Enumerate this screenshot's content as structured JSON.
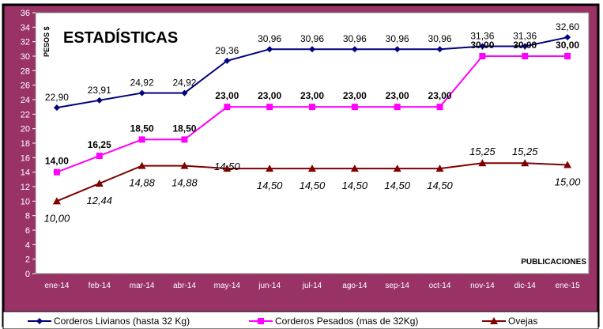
{
  "chart_data": {
    "type": "line",
    "title": "ESTADÍSTICAS",
    "ylabel": "PESOS $",
    "xlabel": "PUBLICACIONES",
    "categories": [
      "ene-14",
      "feb-14",
      "mar-14",
      "abr-14",
      "may-14",
      "jun-14",
      "jul-14",
      "ago-14",
      "sep-14",
      "oct-14",
      "nov-14",
      "dic-14",
      "ene-15"
    ],
    "ylim": [
      0,
      36
    ],
    "ytick_step": 2,
    "grid": false,
    "legend_position": "bottom",
    "series": [
      {
        "name": "Corderos Livianos (hasta 32 Kg)",
        "color": "#000080",
        "marker": "diamond",
        "values": [
          22.9,
          23.91,
          24.92,
          24.92,
          29.36,
          30.96,
          30.96,
          30.96,
          30.96,
          30.96,
          31.36,
          31.36,
          32.6
        ],
        "labels": [
          "22,90",
          "23,91",
          "24,92",
          "24,92",
          "29,36",
          "30,96",
          "30,96",
          "30,96",
          "30,96",
          "30,96",
          "31,36",
          "31,36",
          "32,60"
        ]
      },
      {
        "name": "Corderos Pesados (mas de 32Kg)",
        "color": "#ff00ff",
        "marker": "square",
        "values": [
          14.0,
          16.25,
          18.5,
          18.5,
          23.0,
          23.0,
          23.0,
          23.0,
          23.0,
          23.0,
          30.0,
          30.0,
          30.0
        ],
        "labels": [
          "14,00",
          "16,25",
          "18,50",
          "18,50",
          "23,00",
          "23,00",
          "23,00",
          "23,00",
          "23,00",
          "23,00",
          "30,00",
          "30,00",
          "30,00"
        ]
      },
      {
        "name": "Ovejas",
        "color": "#800000",
        "marker": "triangle",
        "values": [
          10.0,
          12.44,
          14.88,
          14.88,
          14.5,
          14.5,
          14.5,
          14.5,
          14.5,
          14.5,
          15.25,
          15.25,
          15.0
        ],
        "labels": [
          "10,00",
          "12,44",
          "14,88",
          "14,88",
          "14,50",
          "14,50",
          "14,50",
          "14,50",
          "14,50",
          "14,50",
          "15,25",
          "15,25",
          "15,00"
        ]
      }
    ]
  },
  "colors": {
    "frame_background": "#993366",
    "plot_background": "#ffffff",
    "axis_text": "#ffffff"
  }
}
